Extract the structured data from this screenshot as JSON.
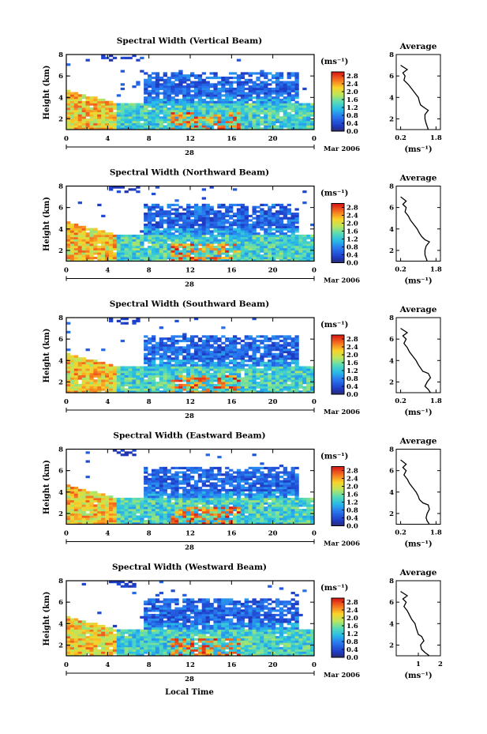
{
  "figure": {
    "x_axis_label": "Local Time",
    "date_label": "Mar 2006",
    "day_label": "28",
    "colorbar_unit": "(ms⁻¹)",
    "side_title": "Average",
    "side_unit": "(ms⁻¹)"
  },
  "chart_data": [
    {
      "type": "heatmap",
      "title": "Spectral Width (Vertical Beam)",
      "ylabel": "Height (km)",
      "xlabel": "",
      "x_ticks": [
        "0",
        "4",
        "8",
        "12",
        "16",
        "20",
        "0"
      ],
      "x_range": [
        0,
        24
      ],
      "y_ticks": [
        "2",
        "4",
        "6",
        "8"
      ],
      "y_range": [
        1,
        8
      ],
      "colorbar_ticks": [
        "0.0",
        "0.4",
        "0.8",
        "1.2",
        "1.6",
        "2.0",
        "2.4",
        "2.8"
      ],
      "colorbar_range": [
        0,
        3.0
      ],
      "average_profile": {
        "x_ticks": [
          "0.2",
          "1.8"
        ],
        "x_range": [
          0,
          2.0
        ],
        "heights": [
          1.0,
          1.3,
          1.6,
          2.0,
          2.4,
          2.8,
          3.0,
          3.3,
          3.6,
          4.0,
          4.4,
          4.8,
          5.2,
          5.6,
          6.0,
          6.3,
          6.6,
          7.0
        ],
        "values": [
          1.45,
          1.4,
          1.35,
          1.3,
          1.3,
          1.45,
          1.3,
          1.1,
          1.05,
          1.0,
          0.85,
          0.7,
          0.55,
          0.35,
          0.4,
          0.3,
          0.5,
          0.2
        ]
      }
    },
    {
      "type": "heatmap",
      "title": "Spectral Width (Northward Beam)",
      "ylabel": "Height (km)",
      "xlabel": "",
      "x_ticks": [
        "0",
        "4",
        "8",
        "12",
        "16",
        "20",
        "0"
      ],
      "x_range": [
        0,
        24
      ],
      "y_ticks": [
        "2",
        "4",
        "6",
        "8"
      ],
      "y_range": [
        1,
        8
      ],
      "colorbar_ticks": [
        "0.0",
        "0.4",
        "0.8",
        "1.2",
        "1.6",
        "2.0",
        "2.4",
        "2.8"
      ],
      "colorbar_range": [
        0,
        3.0
      ],
      "average_profile": {
        "x_ticks": [
          "0.2",
          "1.8"
        ],
        "x_range": [
          0,
          2.0
        ],
        "heights": [
          1.0,
          1.3,
          1.6,
          2.0,
          2.4,
          2.8,
          3.0,
          3.3,
          3.6,
          4.0,
          4.4,
          4.8,
          5.2,
          5.6,
          6.0,
          6.3,
          6.6,
          7.0
        ],
        "values": [
          1.4,
          1.35,
          1.3,
          1.3,
          1.35,
          1.5,
          1.3,
          1.15,
          1.05,
          0.95,
          0.8,
          0.65,
          0.55,
          0.4,
          0.45,
          0.3,
          0.45,
          0.2
        ]
      }
    },
    {
      "type": "heatmap",
      "title": "Spectral Width (Southward Beam)",
      "ylabel": "Height (km)",
      "xlabel": "",
      "x_ticks": [
        "0",
        "4",
        "8",
        "12",
        "16",
        "20",
        "0"
      ],
      "x_range": [
        0,
        24
      ],
      "y_ticks": [
        "2",
        "4",
        "6",
        "8"
      ],
      "y_range": [
        1,
        8
      ],
      "colorbar_ticks": [
        "0.0",
        "0.4",
        "0.8",
        "1.2",
        "1.6",
        "2.0",
        "2.4",
        "2.8"
      ],
      "colorbar_range": [
        0,
        3.0
      ],
      "average_profile": {
        "x_ticks": [
          "0.2",
          "1.8"
        ],
        "x_range": [
          0,
          2.0
        ],
        "heights": [
          1.0,
          1.3,
          1.6,
          2.0,
          2.4,
          2.8,
          3.0,
          3.3,
          3.6,
          4.0,
          4.4,
          4.8,
          5.2,
          5.6,
          6.0,
          6.3,
          6.6,
          7.0
        ],
        "values": [
          1.55,
          1.45,
          1.3,
          1.4,
          1.55,
          1.45,
          1.2,
          1.1,
          1.0,
          0.9,
          0.75,
          0.6,
          0.5,
          0.35,
          0.45,
          0.3,
          0.5,
          0.2
        ]
      }
    },
    {
      "type": "heatmap",
      "title": "Spectral Width (Eastward Beam)",
      "ylabel": "Height (km)",
      "xlabel": "",
      "x_ticks": [
        "0",
        "4",
        "8",
        "12",
        "16",
        "20",
        "0"
      ],
      "x_range": [
        0,
        24
      ],
      "y_ticks": [
        "2",
        "4",
        "6",
        "8"
      ],
      "y_range": [
        1,
        8
      ],
      "colorbar_ticks": [
        "0.0",
        "0.4",
        "0.8",
        "1.2",
        "1.6",
        "2.0",
        "2.4",
        "2.8"
      ],
      "colorbar_range": [
        0,
        3.0
      ],
      "average_profile": {
        "x_ticks": [
          "0.2",
          "1.8"
        ],
        "x_range": [
          0,
          2.0
        ],
        "heights": [
          1.0,
          1.3,
          1.6,
          2.0,
          2.4,
          2.8,
          3.0,
          3.3,
          3.6,
          4.0,
          4.4,
          4.8,
          5.2,
          5.6,
          6.0,
          6.3,
          6.6,
          7.0
        ],
        "values": [
          1.5,
          1.4,
          1.35,
          1.4,
          1.5,
          1.45,
          1.2,
          1.05,
          1.0,
          0.9,
          0.75,
          0.6,
          0.5,
          0.35,
          0.45,
          0.3,
          0.45,
          0.2
        ]
      }
    },
    {
      "type": "heatmap",
      "title": "Spectral Width (Westward Beam)",
      "ylabel": "Height (km)",
      "xlabel": "Local Time",
      "x_ticks": [
        "0",
        "4",
        "8",
        "12",
        "16",
        "20",
        "0"
      ],
      "x_range": [
        0,
        24
      ],
      "y_ticks": [
        "2",
        "4",
        "6",
        "8"
      ],
      "y_range": [
        1,
        8
      ],
      "colorbar_ticks": [
        "0.0",
        "0.4",
        "0.8",
        "1.2",
        "1.6",
        "2.0",
        "2.4",
        "2.8"
      ],
      "colorbar_range": [
        0,
        3.0
      ],
      "average_profile": {
        "x_ticks": [
          "1",
          "2"
        ],
        "x_range": [
          0,
          2.0
        ],
        "heights": [
          1.0,
          1.3,
          1.6,
          2.0,
          2.4,
          2.8,
          3.0,
          3.3,
          3.6,
          4.0,
          4.4,
          4.8,
          5.2,
          5.6,
          6.0,
          6.3,
          6.6,
          7.0
        ],
        "values": [
          1.5,
          1.3,
          1.15,
          1.1,
          1.25,
          1.15,
          1.0,
          0.95,
          0.9,
          0.85,
          0.7,
          0.6,
          0.5,
          0.35,
          0.45,
          0.3,
          0.5,
          0.2
        ]
      }
    }
  ]
}
